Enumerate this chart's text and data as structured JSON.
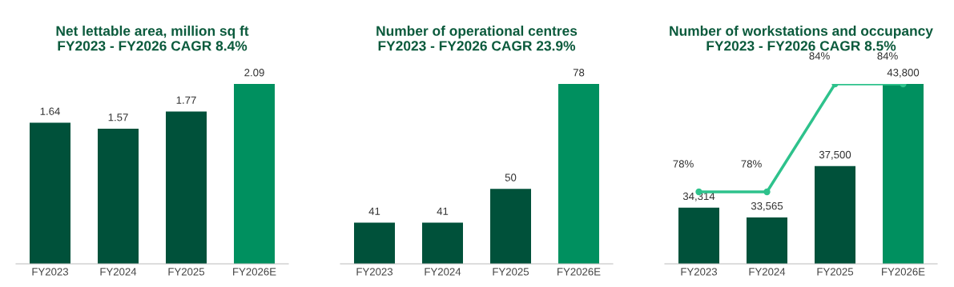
{
  "chart_data": [
    {
      "type": "bar",
      "title": "Net lettable area, million sq ft\nFY2023 - FY2026 CAGR 8.4%",
      "categories": [
        "FY2023",
        "FY2024",
        "FY2025",
        "FY2026E"
      ],
      "ylim": [
        0,
        2.09
      ],
      "tick_labels": "x",
      "grid": false,
      "legend": false,
      "series": [
        {
          "colors": [
            "#00513a",
            "#00513a",
            "#00513a",
            "#00905f"
          ],
          "values": [
            1.64,
            1.57,
            1.77,
            2.09
          ],
          "value_labels": [
            "1.64",
            "1.57",
            "1.77",
            "2.09"
          ]
        }
      ]
    },
    {
      "type": "bar",
      "title": "Number of operational centres\nFY2023 - FY2026 CAGR 23.9%",
      "categories": [
        "FY2023",
        "FY2024",
        "FY2025",
        "FY2026E"
      ],
      "ylim": [
        30,
        78
      ],
      "tick_labels": "x",
      "grid": false,
      "legend": false,
      "series": [
        {
          "colors": [
            "#00513a",
            "#00513a",
            "#00513a",
            "#00905f"
          ],
          "values": [
            41,
            41,
            50,
            78
          ],
          "value_labels": [
            "41",
            "41",
            "50",
            "78"
          ]
        }
      ]
    },
    {
      "type": "bar",
      "title": "Number of workstations and occupancy\nFY2023 - FY2026 CAGR 8.5%",
      "categories": [
        "FY2023",
        "FY2024",
        "FY2025",
        "FY2026E"
      ],
      "ylim": [
        30000,
        43800
      ],
      "y2lim": [
        74,
        84
      ],
      "tick_labels": "x",
      "grid": false,
      "legend": false,
      "series": [
        {
          "colors": [
            "#00513a",
            "#00513a",
            "#00513a",
            "#00905f"
          ],
          "values": [
            34314,
            33565,
            37500,
            43800
          ],
          "value_labels": [
            "34,314",
            "33,565",
            "37,500",
            "43,800"
          ]
        },
        {
          "type": "line",
          "axis": "y2",
          "color": "#2ec28c",
          "marker": "circle",
          "line_style": "solid",
          "values": [
            78,
            78,
            84,
            84
          ],
          "value_labels": [
            "78%",
            "78%",
            "84%",
            "84%"
          ]
        }
      ]
    }
  ]
}
